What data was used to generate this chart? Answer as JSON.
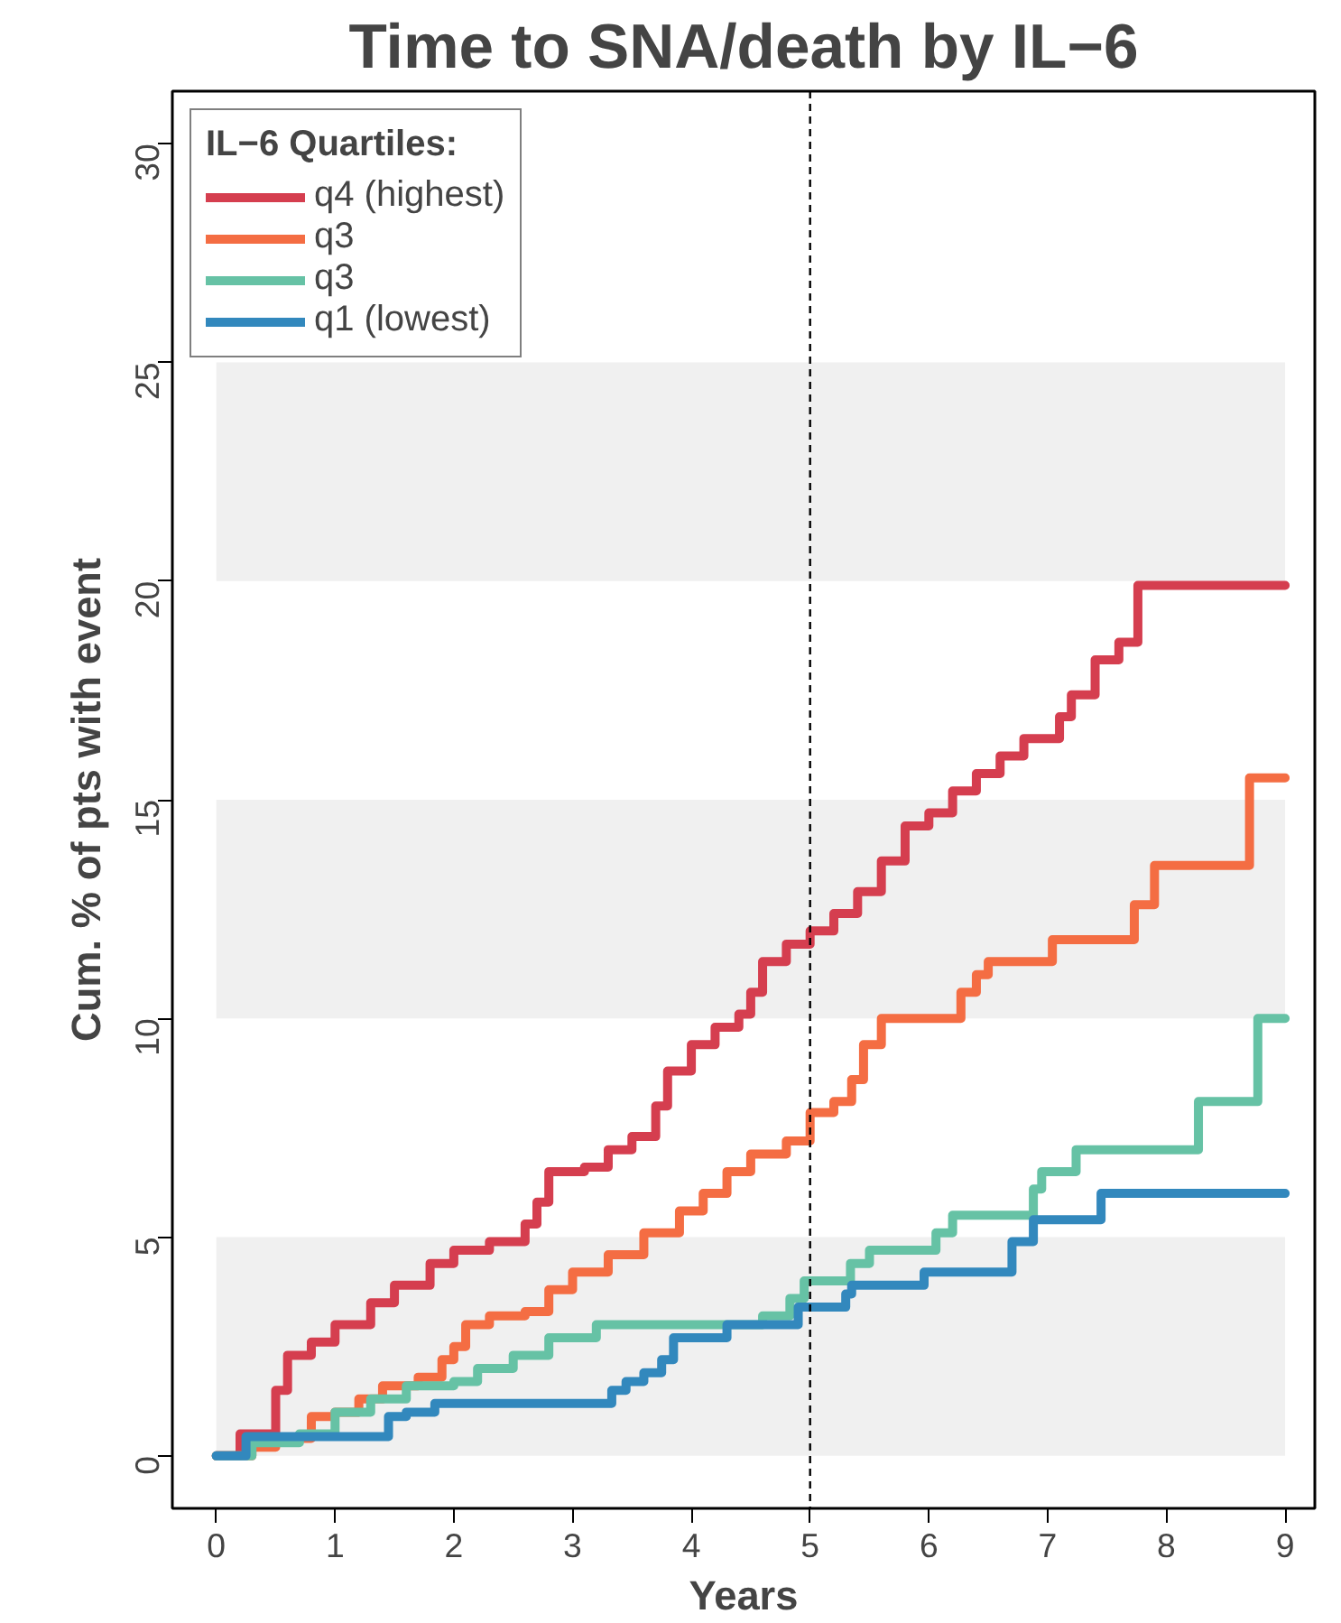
{
  "chart_data": {
    "type": "step",
    "title": "Time to SNA/death by IL−6",
    "xlabel": "Years",
    "ylabel": "Cum. % of pts with event",
    "legend_title": "IL−6 Quartiles:",
    "legend": "top left",
    "grid": false,
    "line_style": "solid",
    "xlim": [
      -0.37,
      9.25
    ],
    "ylim": [
      -1.2,
      31.2
    ],
    "xticks": [
      0,
      1,
      2,
      3,
      4,
      5,
      6,
      7,
      8,
      9
    ],
    "yticks": [
      0,
      5,
      10,
      15,
      20,
      25,
      30
    ],
    "bands": [
      {
        "axis": "y",
        "from": 0,
        "to": 5,
        "color": "#f0f0f0"
      },
      {
        "axis": "y",
        "from": 10,
        "to": 15,
        "color": "#f0f0f0"
      },
      {
        "axis": "y",
        "from": 20,
        "to": 25,
        "color": "#f0f0f0"
      }
    ],
    "ref_lines": [
      {
        "axis": "x",
        "value": 5,
        "color": "#000000",
        "line_style": "dashed"
      }
    ],
    "series": [
      {
        "name": "q4 (highest)",
        "color": "#d53e4f",
        "x": [
          0,
          0.2,
          0.5,
          0.6,
          0.8,
          1,
          1.3,
          1.5,
          1.8,
          2,
          2.3,
          2.6,
          2.7,
          2.8,
          3.1,
          3.3,
          3.5,
          3.7,
          3.8,
          4,
          4.2,
          4.4,
          4.5,
          4.6,
          4.8,
          5,
          5.2,
          5.4,
          5.6,
          5.8,
          6,
          6.2,
          6.4,
          6.6,
          6.8,
          7.1,
          7.2,
          7.4,
          7.6,
          7.76,
          9
        ],
        "values": [
          0,
          0.5,
          1.5,
          2.3,
          2.6,
          3,
          3.5,
          3.9,
          4.4,
          4.7,
          4.9,
          5.3,
          5.8,
          6.5,
          6.6,
          7.0,
          7.3,
          8.0,
          8.8,
          9.4,
          9.8,
          10.1,
          10.6,
          11.3,
          11.7,
          12.0,
          12.4,
          12.9,
          13.6,
          14.4,
          14.7,
          15.2,
          15.6,
          16.0,
          16.4,
          16.9,
          17.4,
          18.2,
          18.6,
          19.9,
          19.9
        ]
      },
      {
        "name": "q3",
        "color": "#f46d43",
        "x": [
          0,
          0.3,
          0.5,
          0.8,
          1,
          1.2,
          1.4,
          1.7,
          1.9,
          2,
          2.1,
          2.3,
          2.6,
          2.8,
          3,
          3.3,
          3.6,
          3.9,
          4.1,
          4.3,
          4.5,
          4.8,
          5,
          5.2,
          5.35,
          5.45,
          5.6,
          6.27,
          6.4,
          6.5,
          7.04,
          7.73,
          7.9,
          8.7,
          9
        ],
        "values": [
          0,
          0.2,
          0.4,
          0.9,
          1.0,
          1.3,
          1.6,
          1.8,
          2.2,
          2.5,
          3.0,
          3.2,
          3.3,
          3.8,
          4.2,
          4.6,
          5.1,
          5.6,
          6.0,
          6.5,
          6.9,
          7.2,
          7.85,
          8.1,
          8.6,
          9.4,
          10.0,
          10.6,
          11.0,
          11.3,
          11.8,
          12.6,
          13.5,
          15.5,
          15.5
        ]
      },
      {
        "name": "q3",
        "color": "#66c2a5",
        "x": [
          0,
          0.3,
          0.7,
          1,
          1.3,
          1.6,
          2,
          2.2,
          2.5,
          2.8,
          3.2,
          4.6,
          4.83,
          4.95,
          5.34,
          5.5,
          6.06,
          6.2,
          6.88,
          6.95,
          7.24,
          8.27,
          8.77,
          9
        ],
        "values": [
          0,
          0.3,
          0.5,
          1.0,
          1.3,
          1.6,
          1.7,
          2.0,
          2.3,
          2.7,
          3.0,
          3.2,
          3.6,
          4.0,
          4.4,
          4.7,
          5.1,
          5.5,
          6.1,
          6.5,
          7.0,
          8.1,
          10.0,
          10.0
        ]
      },
      {
        "name": "q1 (lowest)",
        "color": "#3288bd",
        "x": [
          0,
          0.25,
          1.45,
          1.6,
          1.84,
          3.33,
          3.45,
          3.6,
          3.75,
          3.85,
          4.3,
          4.9,
          5.3,
          5.35,
          5.96,
          6.7,
          6.88,
          7.45,
          9
        ],
        "values": [
          0,
          0.44,
          0.9,
          1.0,
          1.2,
          1.5,
          1.7,
          1.9,
          2.2,
          2.7,
          3.0,
          3.4,
          3.7,
          3.9,
          4.2,
          4.9,
          5.4,
          6.0,
          6.0
        ]
      }
    ]
  }
}
